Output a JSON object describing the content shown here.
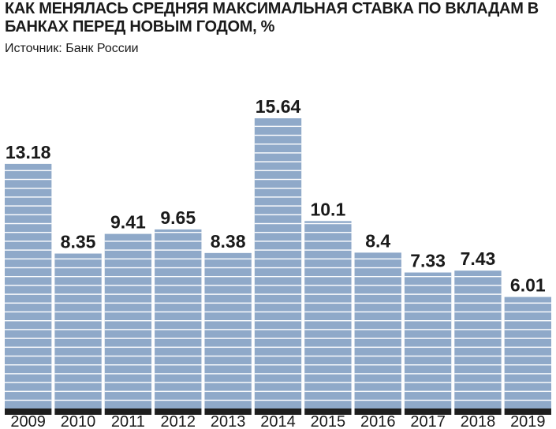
{
  "title": "КАК МЕНЯЛАСЬ СРЕДНЯЯ МАКСИМАЛЬНАЯ СТАВКА ПО ВКЛАДАМ В БАНКАХ ПЕРЕД НОВЫМ ГОДОМ, %",
  "source": "Источник: Банк России",
  "colors": {
    "bar": "#8fa9c9",
    "stripe": "#ffffff",
    "base": "#1e1e1e",
    "label": "#1a1a1a"
  },
  "chart_data": {
    "type": "bar",
    "title": "КАК МЕНЯЛАСЬ СРЕДНЯЯ МАКСИМАЛЬНАЯ СТАВКА ПО ВКЛАДАМ В БАНКАХ ПЕРЕД НОВЫМ ГОДОМ, %",
    "categories": [
      "2009",
      "2010",
      "2011",
      "2012",
      "2013",
      "2014",
      "2015",
      "2016",
      "2017",
      "2018",
      "2019"
    ],
    "values": [
      13.18,
      8.35,
      9.41,
      9.65,
      8.38,
      15.64,
      10.1,
      8.4,
      7.33,
      7.43,
      6.01
    ],
    "data_labels": [
      "13.18",
      "8.35",
      "9.41",
      "9.65",
      "8.38",
      "15.64",
      "10.1",
      "8.4",
      "7.33",
      "7.43",
      "6.01"
    ],
    "xlabel": "",
    "ylabel": "",
    "ylim": [
      0,
      15.64
    ],
    "grid": false,
    "legend": "none"
  }
}
